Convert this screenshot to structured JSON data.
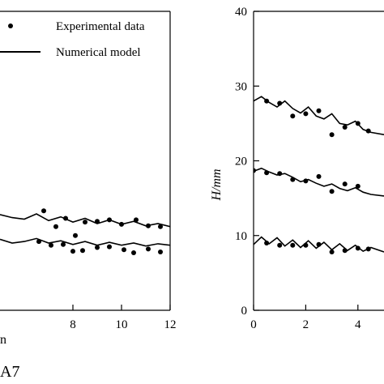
{
  "chart_data": [
    {
      "type": "scatter",
      "panel": "left",
      "xlim": [
        5,
        12
      ],
      "ylim": [
        0,
        40
      ],
      "x_ticks": [
        {
          "v": 8,
          "label": "8"
        },
        {
          "v": 10,
          "label": "10"
        },
        {
          "v": 12,
          "label": "12"
        }
      ],
      "xlabel_fragment": "n",
      "panel_label": "A7",
      "legend": {
        "placement": "top-right",
        "points_label": "Experimental data",
        "line_label": "Numerical model"
      },
      "series": [
        {
          "kind": "points",
          "x": [
            6.8,
            7.3,
            7.7,
            8.1,
            8.5,
            9.0,
            9.5,
            10.0,
            10.6,
            11.1,
            11.6,
            6.6,
            7.1,
            7.6,
            8.0,
            8.4,
            9.0,
            9.5,
            10.1,
            10.5,
            11.1,
            11.6
          ],
          "y": [
            13.3,
            11.2,
            12.3,
            10.0,
            11.8,
            11.9,
            12.1,
            11.5,
            12.1,
            11.3,
            11.2,
            9.2,
            8.7,
            8.8,
            7.9,
            8.0,
            8.4,
            8.5,
            8.1,
            7.7,
            8.2,
            7.8
          ]
        },
        {
          "kind": "line",
          "x": [
            5.0,
            5.5,
            6.0,
            6.5,
            7.0,
            7.5,
            8.0,
            8.5,
            9.0,
            9.5,
            10.0,
            10.5,
            11.0,
            11.5,
            12.0
          ],
          "y": [
            12.8,
            12.4,
            12.2,
            12.9,
            12.0,
            12.5,
            11.8,
            12.3,
            11.6,
            12.1,
            11.5,
            11.9,
            11.3,
            11.6,
            11.2
          ]
        },
        {
          "kind": "line",
          "x": [
            5.0,
            5.5,
            6.0,
            6.5,
            7.0,
            7.5,
            8.0,
            8.5,
            9.0,
            9.5,
            10.0,
            10.5,
            11.0,
            11.5,
            12.0
          ],
          "y": [
            9.5,
            9.0,
            9.2,
            9.6,
            9.0,
            9.3,
            8.8,
            9.2,
            8.7,
            9.1,
            8.7,
            9.0,
            8.6,
            8.9,
            8.7
          ]
        }
      ]
    },
    {
      "type": "scatter",
      "panel": "right",
      "xlim": [
        0,
        5
      ],
      "ylim": [
        0,
        40
      ],
      "x_ticks": [
        {
          "v": 0,
          "label": "0"
        },
        {
          "v": 2,
          "label": "2"
        },
        {
          "v": 4,
          "label": "4"
        }
      ],
      "y_ticks": [
        {
          "v": 0,
          "label": "0"
        },
        {
          "v": 10,
          "label": "10"
        },
        {
          "v": 20,
          "label": "20"
        },
        {
          "v": 30,
          "label": "30"
        },
        {
          "v": 40,
          "label": "40"
        }
      ],
      "ylabel": "H/mm",
      "series": [
        {
          "kind": "points",
          "x": [
            0.5,
            1.0,
            1.5,
            2.0,
            2.5,
            3.0,
            3.5,
            4.0,
            4.4,
            0.0,
            0.5,
            1.0,
            1.5,
            2.0,
            2.5,
            3.0,
            3.5,
            4.0,
            0.5,
            1.0,
            1.5,
            2.0,
            2.5,
            3.0,
            3.5,
            4.0,
            4.4
          ],
          "y": [
            28.0,
            27.7,
            26.0,
            26.3,
            26.7,
            23.5,
            24.5,
            25.0,
            24.0,
            18.7,
            18.4,
            18.3,
            17.5,
            17.3,
            17.9,
            15.9,
            16.9,
            16.6,
            9.0,
            8.7,
            8.7,
            8.7,
            8.8,
            7.8,
            8.0,
            8.3,
            8.2
          ]
        },
        {
          "kind": "line",
          "x": [
            0.0,
            0.3,
            0.6,
            0.9,
            1.2,
            1.5,
            1.8,
            2.1,
            2.4,
            2.7,
            3.0,
            3.3,
            3.6,
            3.9,
            4.2,
            4.5,
            5.0
          ],
          "y": [
            28.0,
            28.6,
            27.8,
            27.2,
            28.0,
            27.0,
            26.4,
            27.2,
            26.0,
            25.6,
            26.3,
            25.0,
            24.8,
            25.3,
            24.2,
            23.8,
            23.5
          ]
        },
        {
          "kind": "line",
          "x": [
            0.0,
            0.3,
            0.6,
            0.9,
            1.2,
            1.5,
            1.8,
            2.1,
            2.4,
            2.7,
            3.0,
            3.3,
            3.6,
            3.9,
            4.2,
            4.5,
            5.0
          ],
          "y": [
            18.6,
            19.0,
            18.5,
            18.1,
            18.3,
            17.8,
            17.2,
            17.5,
            17.0,
            16.6,
            16.9,
            16.3,
            16.0,
            16.4,
            15.8,
            15.5,
            15.3
          ]
        },
        {
          "kind": "line",
          "x": [
            0.0,
            0.3,
            0.6,
            0.9,
            1.2,
            1.5,
            1.8,
            2.1,
            2.4,
            2.7,
            3.0,
            3.3,
            3.6,
            3.9,
            4.2,
            4.5,
            5.0
          ],
          "y": [
            8.8,
            9.8,
            8.9,
            9.7,
            8.6,
            9.4,
            8.4,
            9.3,
            8.3,
            9.1,
            8.1,
            8.9,
            8.0,
            8.7,
            7.9,
            8.4,
            7.8
          ]
        }
      ]
    }
  ]
}
